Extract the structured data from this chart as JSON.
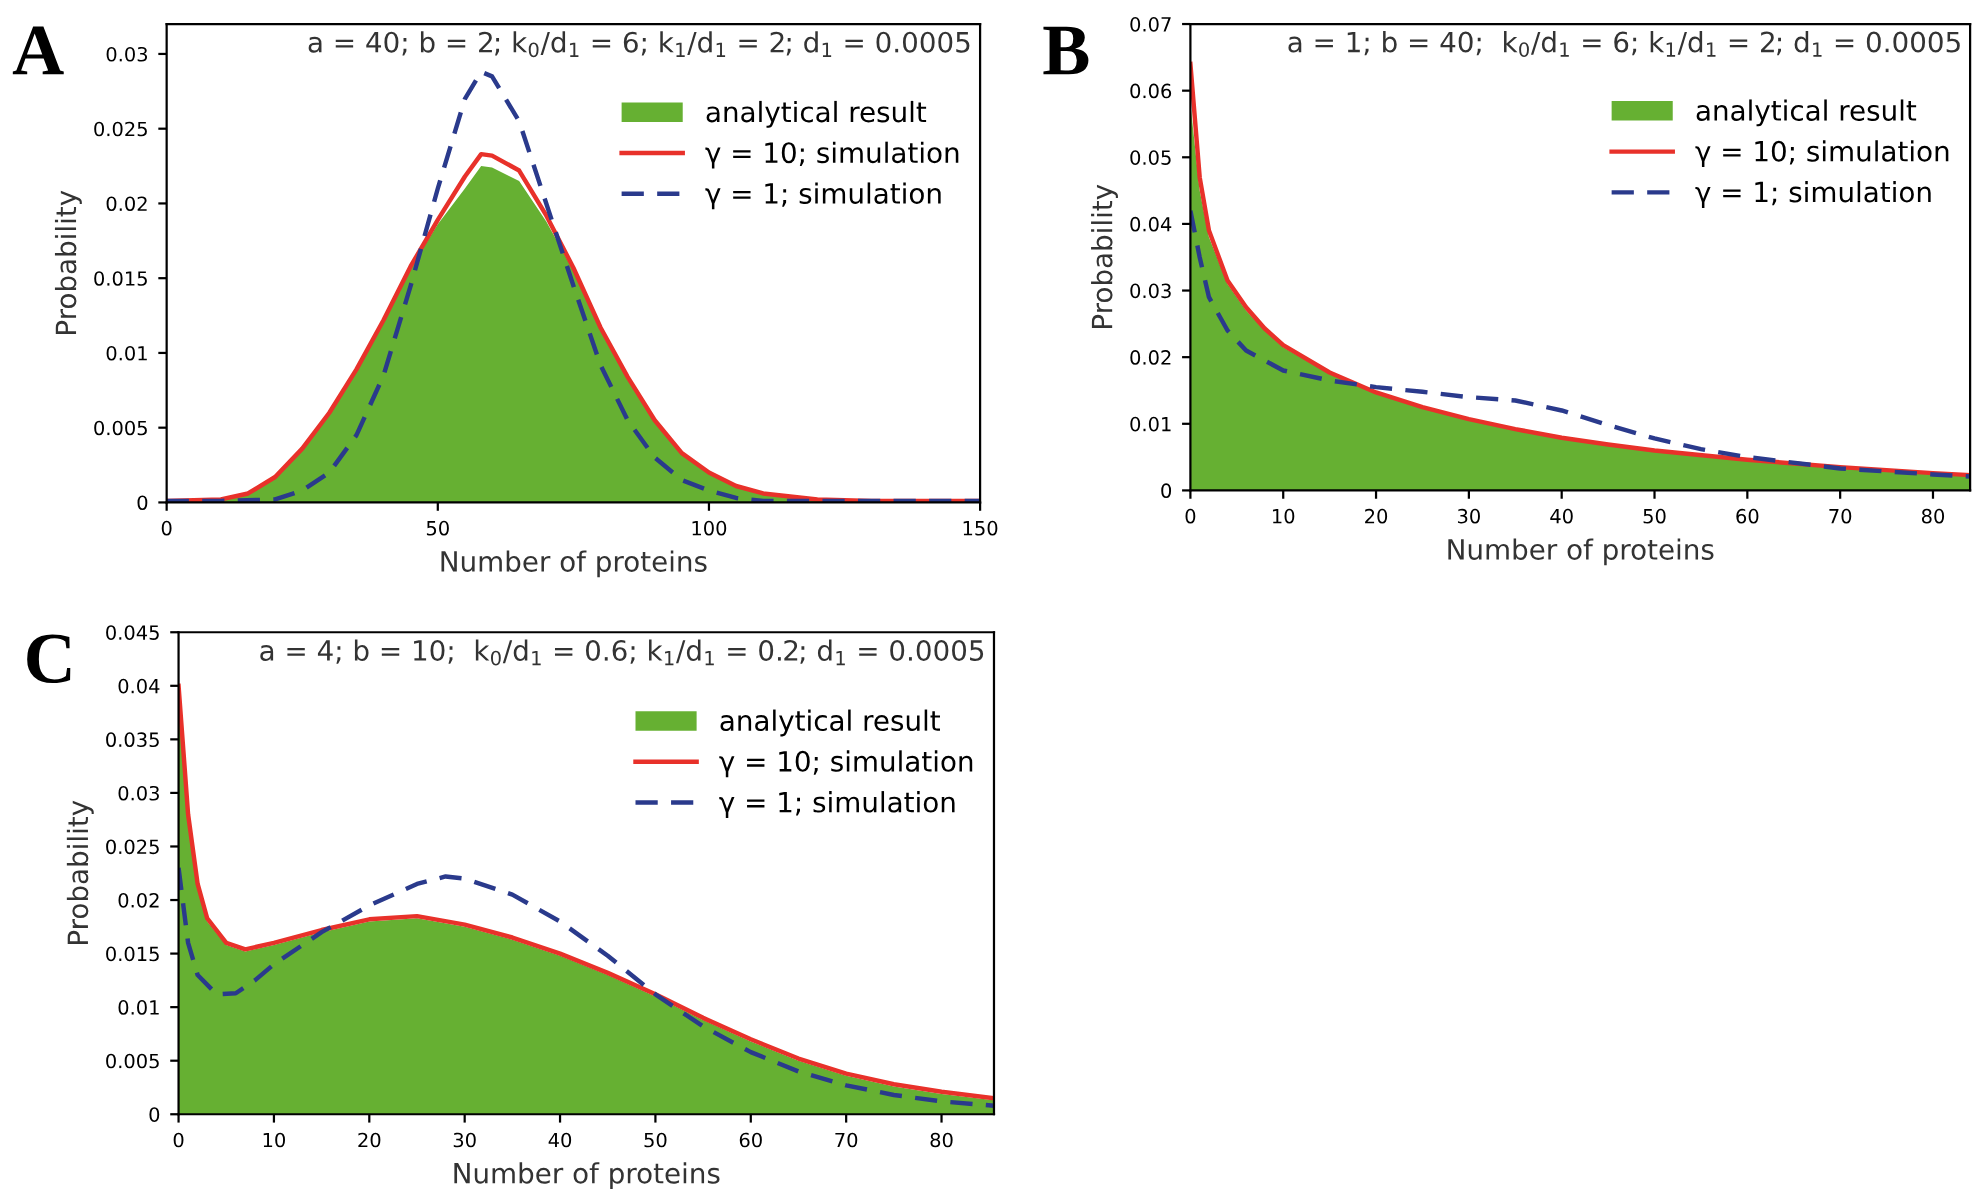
{
  "chart_data": [
    {
      "type": "line",
      "title": "A",
      "xlabel": "Number of proteins",
      "ylabel": "Probability",
      "annotations": [
        "a = 40; b = 2; k$_{0}$/d$_{1}$ = 6; k$_{1}$/d$_{1}$ = 2; d$_{1}$ = 0.0005"
      ],
      "xlim": [
        0,
        150
      ],
      "xticks": [
        0,
        50,
        100,
        150
      ],
      "ylim": [
        0,
        0.032
      ],
      "yticks": [
        0,
        0.005,
        0.01,
        0.015,
        0.02,
        0.025,
        0.03
      ],
      "legend": "top right",
      "series": [
        {
          "name": "analytical result",
          "type": "area",
          "color": "#66b032",
          "x": [
            0,
            10,
            15,
            20,
            25,
            30,
            35,
            40,
            45,
            50,
            55,
            58,
            60,
            65,
            70,
            75,
            80,
            85,
            90,
            95,
            100,
            105,
            110,
            120,
            130,
            150
          ],
          "values": [
            0.0001,
            0.0002,
            0.0006,
            0.0017,
            0.0036,
            0.0059,
            0.0088,
            0.0121,
            0.0157,
            0.0186,
            0.021,
            0.0225,
            0.0224,
            0.0215,
            0.0188,
            0.0155,
            0.0115,
            0.0082,
            0.0054,
            0.0033,
            0.002,
            0.0011,
            0.0006,
            0.0002,
            0.0001,
            0.0001
          ]
        },
        {
          "name": "γ = 10; simulation",
          "color": "#e8312a",
          "x": [
            0,
            10,
            15,
            20,
            25,
            30,
            35,
            40,
            45,
            50,
            55,
            58,
            60,
            65,
            70,
            75,
            80,
            85,
            90,
            95,
            100,
            105,
            110,
            120,
            130,
            150
          ],
          "values": [
            0.0001,
            0.0002,
            0.0006,
            0.0017,
            0.0036,
            0.006,
            0.0089,
            0.0122,
            0.0158,
            0.0189,
            0.0218,
            0.0233,
            0.0232,
            0.0222,
            0.0192,
            0.0157,
            0.0117,
            0.0084,
            0.0055,
            0.0033,
            0.002,
            0.0011,
            0.0006,
            0.0002,
            0.0001,
            0.0001
          ]
        },
        {
          "name": "γ = 1; simulation",
          "line_style": "dashed",
          "color": "#2a3a8c",
          "x": [
            0,
            10,
            20,
            25,
            30,
            35,
            40,
            45,
            50,
            55,
            58,
            60,
            65,
            70,
            75,
            80,
            85,
            90,
            95,
            100,
            105,
            110,
            120,
            150
          ],
          "values": [
            0.0001,
            0.0001,
            0.0002,
            0.0008,
            0.002,
            0.0045,
            0.0085,
            0.0145,
            0.021,
            0.027,
            0.0288,
            0.0285,
            0.0255,
            0.02,
            0.0145,
            0.0092,
            0.0055,
            0.003,
            0.0015,
            0.0008,
            0.0003,
            0.0001,
            0.0001,
            0.0001
          ]
        }
      ]
    },
    {
      "type": "line",
      "title": "B",
      "xlabel": "Number of proteins",
      "ylabel": "Probability",
      "annotations": [
        "a = 1; b = 40;  k$_{0}$/d$_{1}$ = 6; k$_{1}$/d$_{1}$ = 2; d$_{1}$ = 0.0005"
      ],
      "xlim": [
        0,
        84
      ],
      "xticks": [
        0,
        10,
        20,
        30,
        40,
        50,
        60,
        70,
        80
      ],
      "ylim": [
        0,
        0.07
      ],
      "yticks": [
        0,
        0.01,
        0.02,
        0.03,
        0.04,
        0.05,
        0.06,
        0.07
      ],
      "legend": "top right",
      "series": [
        {
          "name": "analytical result",
          "type": "area",
          "color": "#66b032",
          "x": [
            0,
            1,
            2,
            4,
            6,
            8,
            10,
            15,
            20,
            25,
            30,
            35,
            40,
            45,
            50,
            60,
            70,
            80,
            84
          ],
          "values": [
            0.058,
            0.045,
            0.038,
            0.031,
            0.027,
            0.024,
            0.0215,
            0.0175,
            0.0145,
            0.0123,
            0.0105,
            0.009,
            0.0077,
            0.0067,
            0.0058,
            0.0044,
            0.0033,
            0.0025,
            0.0022
          ]
        },
        {
          "name": "γ = 10; simulation",
          "color": "#e8312a",
          "x": [
            0,
            1,
            2,
            4,
            6,
            8,
            10,
            15,
            20,
            25,
            30,
            35,
            40,
            45,
            50,
            60,
            70,
            80,
            84
          ],
          "values": [
            0.064,
            0.047,
            0.039,
            0.0315,
            0.0275,
            0.0243,
            0.0218,
            0.0177,
            0.0147,
            0.0125,
            0.0107,
            0.0092,
            0.0079,
            0.0069,
            0.006,
            0.0046,
            0.0035,
            0.0026,
            0.0023
          ]
        },
        {
          "name": "γ = 1; simulation",
          "line_style": "dashed",
          "color": "#2a3a8c",
          "x": [
            0,
            1,
            2,
            4,
            6,
            10,
            15,
            20,
            25,
            30,
            35,
            40,
            45,
            50,
            55,
            60,
            70,
            80,
            84
          ],
          "values": [
            0.042,
            0.035,
            0.029,
            0.024,
            0.021,
            0.018,
            0.0165,
            0.0155,
            0.0148,
            0.014,
            0.0135,
            0.012,
            0.0098,
            0.0078,
            0.0062,
            0.005,
            0.0033,
            0.0024,
            0.0021
          ]
        }
      ]
    },
    {
      "type": "line",
      "title": "C",
      "xlabel": "Number of proteins",
      "ylabel": "Probability",
      "annotations": [
        "a = 4; b = 10;  k$_{0}$/d$_{1}$ = 0.6; k$_{1}$/d$_{1}$ = 0.2; d$_{1}$ = 0.0005"
      ],
      "xlim": [
        0,
        85.5
      ],
      "xticks": [
        0,
        10,
        20,
        30,
        40,
        50,
        60,
        70,
        80
      ],
      "ylim": [
        0,
        0.045
      ],
      "yticks": [
        0,
        0.005,
        0.01,
        0.015,
        0.02,
        0.025,
        0.03,
        0.035,
        0.04,
        0.045
      ],
      "legend": "top right",
      "series": [
        {
          "name": "analytical result",
          "type": "area",
          "color": "#66b032",
          "x": [
            0,
            0.5,
            1,
            2,
            3,
            5,
            7,
            10,
            15,
            20,
            25,
            30,
            35,
            40,
            45,
            50,
            55,
            60,
            65,
            70,
            75,
            80,
            85.5
          ],
          "values": [
            0.038,
            0.033,
            0.027,
            0.021,
            0.018,
            0.0158,
            0.0152,
            0.0158,
            0.017,
            0.018,
            0.0183,
            0.0175,
            0.0163,
            0.0148,
            0.013,
            0.011,
            0.0088,
            0.0068,
            0.005,
            0.0036,
            0.0026,
            0.0019,
            0.0013
          ]
        },
        {
          "name": "γ = 10; simulation",
          "color": "#e8312a",
          "x": [
            0,
            0.5,
            1,
            2,
            3,
            5,
            7,
            10,
            15,
            20,
            25,
            30,
            35,
            40,
            45,
            50,
            55,
            60,
            65,
            70,
            75,
            80,
            85.5
          ],
          "values": [
            0.04,
            0.034,
            0.028,
            0.0215,
            0.0183,
            0.016,
            0.0154,
            0.016,
            0.0172,
            0.0182,
            0.0185,
            0.0177,
            0.0165,
            0.015,
            0.0132,
            0.0112,
            0.009,
            0.007,
            0.0052,
            0.0038,
            0.0028,
            0.0021,
            0.0015
          ]
        },
        {
          "name": "γ = 1; simulation",
          "line_style": "dashed",
          "color": "#2a3a8c",
          "x": [
            0,
            1,
            2,
            4,
            6,
            8,
            10,
            15,
            20,
            25,
            28,
            30,
            35,
            40,
            45,
            50,
            55,
            60,
            65,
            70,
            75,
            80,
            85.5
          ],
          "values": [
            0.023,
            0.016,
            0.013,
            0.0112,
            0.0113,
            0.0125,
            0.014,
            0.017,
            0.0195,
            0.0215,
            0.0222,
            0.022,
            0.0205,
            0.018,
            0.0148,
            0.0112,
            0.0082,
            0.0058,
            0.004,
            0.0027,
            0.0018,
            0.0012,
            0.0008
          ]
        }
      ]
    }
  ]
}
